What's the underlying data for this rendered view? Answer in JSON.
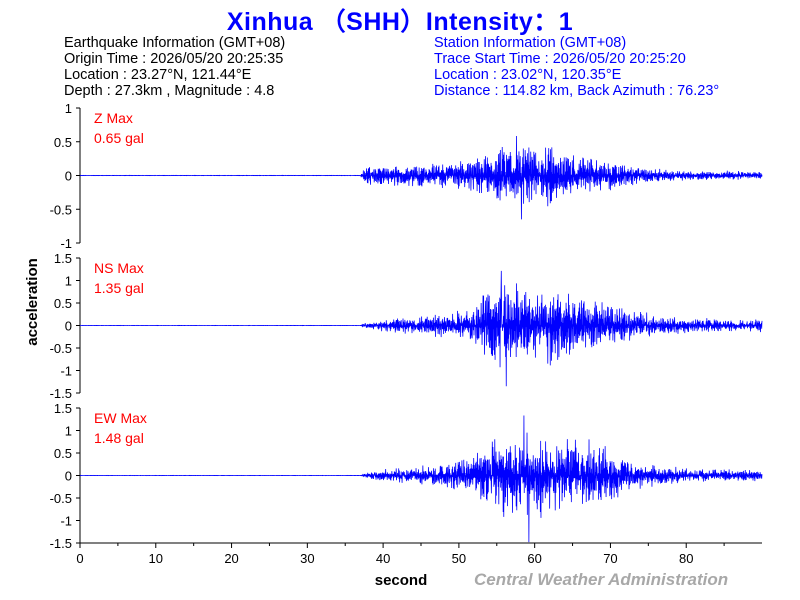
{
  "title": "Xinhua （SHH）Intensity：1",
  "earthquake_info": {
    "header": "Earthquake Information  (GMT+08)",
    "origin_time": "Origin Time : 2026/05/20 20:25:35",
    "location": "Location : 23.27°N, 121.44°E",
    "depth_magnitude": "Depth : 27.3km , Magnitude : 4.8"
  },
  "station_info": {
    "header": "Station Information  (GMT+08)",
    "trace_start": "Trace Start Time : 2026/05/20 20:25:20",
    "location": "Location : 23.02°N, 120.35°E",
    "distance": "Distance : 114.82 km, Back Azimuth : 76.23°"
  },
  "credit": "Central Weather Administration",
  "colors": {
    "title": "#0000ff",
    "station": "#0000ff",
    "trace": "#0000ff",
    "max_label": "#ff0000",
    "credit": "#a8a8a8"
  },
  "chart_data": {
    "type": "line",
    "xlabel": "second",
    "ylabel": "acceleration",
    "xlim": [
      0,
      90
    ],
    "x_ticks": [
      "0",
      "10",
      "20",
      "30",
      "40",
      "50",
      "60",
      "70",
      "80"
    ],
    "grid": false,
    "panels": [
      {
        "name": "Z",
        "max_title": "Z Max",
        "max_value": "0.65 gal",
        "ylim": [
          -1,
          1
        ],
        "y_ticks": [
          "1",
          "0.5",
          "0",
          "-0.5",
          "-1"
        ],
        "envelope": [
          [
            0,
            0.003
          ],
          [
            37,
            0.003
          ],
          [
            37.5,
            0.15
          ],
          [
            42,
            0.18
          ],
          [
            48,
            0.2
          ],
          [
            53,
            0.3
          ],
          [
            56,
            0.5
          ],
          [
            58,
            0.6
          ],
          [
            60,
            0.55
          ],
          [
            62,
            0.5
          ],
          [
            65,
            0.35
          ],
          [
            70,
            0.25
          ],
          [
            75,
            0.12
          ],
          [
            80,
            0.08
          ],
          [
            90,
            0.07
          ]
        ],
        "peak": 0.65
      },
      {
        "name": "NS",
        "max_title": "NS Max",
        "max_value": "1.35 gal",
        "ylim": [
          -1.5,
          1.5
        ],
        "y_ticks": [
          "1.5",
          "1",
          "0.5",
          "0",
          "-0.5",
          "-1",
          "-1.5"
        ],
        "envelope": [
          [
            0,
            0.003
          ],
          [
            37,
            0.003
          ],
          [
            38,
            0.1
          ],
          [
            42,
            0.2
          ],
          [
            48,
            0.3
          ],
          [
            52,
            0.5
          ],
          [
            54,
            1.0
          ],
          [
            56,
            1.2
          ],
          [
            58,
            1.0
          ],
          [
            62,
            0.9
          ],
          [
            67,
            0.7
          ],
          [
            72,
            0.4
          ],
          [
            78,
            0.2
          ],
          [
            85,
            0.15
          ],
          [
            90,
            0.15
          ]
        ],
        "peak": 1.35
      },
      {
        "name": "EW",
        "max_title": "EW Max",
        "max_value": "1.48 gal",
        "ylim": [
          -1.5,
          1.5
        ],
        "y_ticks": [
          "1.5",
          "1",
          "0.5",
          "0",
          "-0.5",
          "-1",
          "-1.5"
        ],
        "envelope": [
          [
            0,
            0.003
          ],
          [
            37,
            0.003
          ],
          [
            38,
            0.1
          ],
          [
            42,
            0.18
          ],
          [
            48,
            0.3
          ],
          [
            52,
            0.5
          ],
          [
            54,
            1.0
          ],
          [
            56,
            1.0
          ],
          [
            59,
            1.1
          ],
          [
            62,
            1.0
          ],
          [
            65,
            0.9
          ],
          [
            68,
            0.8
          ],
          [
            72,
            0.4
          ],
          [
            76,
            0.25
          ],
          [
            82,
            0.15
          ],
          [
            90,
            0.15
          ]
        ],
        "peak": 1.48
      }
    ]
  }
}
